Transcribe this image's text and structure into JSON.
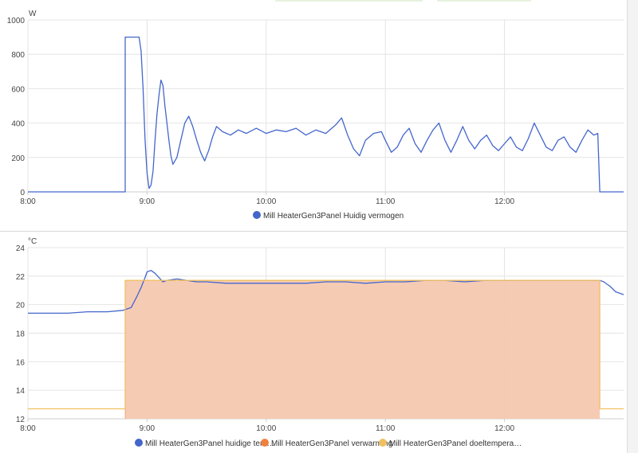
{
  "chart_data": [
    {
      "type": "line",
      "unit": "W",
      "ylim": [
        0,
        1000
      ],
      "y_ticks": [
        "0",
        "200",
        "400",
        "600",
        "800",
        "1000"
      ],
      "x_ticks": [
        "8:00",
        "9:00",
        "10:00",
        "11:00",
        "12:00"
      ],
      "grid": true,
      "legend_position": "bottom",
      "series": [
        {
          "name": "Mill HeaterGen3Panel Huidig vermogen",
          "color": "#4466cc",
          "points": [
            [
              "8:00",
              0
            ],
            [
              "8:49",
              0
            ],
            [
              "8:49",
              900
            ],
            [
              "8:56",
              900
            ],
            [
              "8:57",
              820
            ],
            [
              "8:58",
              600
            ],
            [
              "8:59",
              300
            ],
            [
              "9:00",
              110
            ],
            [
              "9:01",
              20
            ],
            [
              "9:02",
              40
            ],
            [
              "9:03",
              120
            ],
            [
              "9:04",
              300
            ],
            [
              "9:05",
              450
            ],
            [
              "9:06",
              560
            ],
            [
              "9:07",
              650
            ],
            [
              "9:08",
              620
            ],
            [
              "9:09",
              500
            ],
            [
              "9:10",
              400
            ],
            [
              "9:11",
              300
            ],
            [
              "9:12",
              210
            ],
            [
              "9:13",
              160
            ],
            [
              "9:15",
              200
            ],
            [
              "9:17",
              300
            ],
            [
              "9:19",
              400
            ],
            [
              "9:21",
              440
            ],
            [
              "9:23",
              380
            ],
            [
              "9:25",
              300
            ],
            [
              "9:27",
              230
            ],
            [
              "9:29",
              180
            ],
            [
              "9:31",
              240
            ],
            [
              "9:33",
              320
            ],
            [
              "9:35",
              380
            ],
            [
              "9:38",
              350
            ],
            [
              "9:42",
              330
            ],
            [
              "9:46",
              360
            ],
            [
              "9:50",
              340
            ],
            [
              "9:55",
              370
            ],
            [
              "10:00",
              340
            ],
            [
              "10:05",
              360
            ],
            [
              "10:10",
              350
            ],
            [
              "10:15",
              370
            ],
            [
              "10:20",
              330
            ],
            [
              "10:25",
              360
            ],
            [
              "10:30",
              340
            ],
            [
              "10:35",
              390
            ],
            [
              "10:38",
              430
            ],
            [
              "10:41",
              330
            ],
            [
              "10:44",
              250
            ],
            [
              "10:47",
              210
            ],
            [
              "10:50",
              300
            ],
            [
              "10:54",
              340
            ],
            [
              "10:58",
              350
            ],
            [
              "11:00",
              300
            ],
            [
              "11:03",
              230
            ],
            [
              "11:06",
              260
            ],
            [
              "11:09",
              330
            ],
            [
              "11:12",
              370
            ],
            [
              "11:15",
              280
            ],
            [
              "11:18",
              230
            ],
            [
              "11:21",
              300
            ],
            [
              "11:24",
              360
            ],
            [
              "11:27",
              400
            ],
            [
              "11:30",
              300
            ],
            [
              "11:33",
              230
            ],
            [
              "11:36",
              300
            ],
            [
              "11:39",
              380
            ],
            [
              "11:42",
              300
            ],
            [
              "11:45",
              250
            ],
            [
              "11:48",
              300
            ],
            [
              "11:51",
              330
            ],
            [
              "11:54",
              270
            ],
            [
              "11:57",
              240
            ],
            [
              "12:00",
              280
            ],
            [
              "12:03",
              320
            ],
            [
              "12:06",
              260
            ],
            [
              "12:09",
              240
            ],
            [
              "12:12",
              310
            ],
            [
              "12:15",
              400
            ],
            [
              "12:18",
              330
            ],
            [
              "12:21",
              260
            ],
            [
              "12:24",
              240
            ],
            [
              "12:27",
              300
            ],
            [
              "12:30",
              320
            ],
            [
              "12:33",
              260
            ],
            [
              "12:36",
              230
            ],
            [
              "12:39",
              300
            ],
            [
              "12:42",
              360
            ],
            [
              "12:45",
              330
            ],
            [
              "12:47",
              340
            ],
            [
              "12:48",
              0
            ],
            [
              "13:00",
              0
            ]
          ]
        }
      ]
    },
    {
      "type": "area",
      "unit": "°C",
      "ylim": [
        12,
        24
      ],
      "y_ticks": [
        "12",
        "14",
        "16",
        "18",
        "20",
        "22",
        "24"
      ],
      "x_ticks": [
        "8:00",
        "9:00",
        "10:00",
        "11:00",
        "12:00"
      ],
      "grid": true,
      "legend_position": "bottom",
      "series": [
        {
          "name": "Mill HeaterGen3Panel huidige tem…",
          "color": "#4466cc",
          "points": [
            [
              "8:00",
              19.4
            ],
            [
              "8:10",
              19.4
            ],
            [
              "8:20",
              19.4
            ],
            [
              "8:30",
              19.5
            ],
            [
              "8:40",
              19.5
            ],
            [
              "8:48",
              19.6
            ],
            [
              "8:52",
              19.8
            ],
            [
              "8:55",
              20.6
            ],
            [
              "8:57",
              21.2
            ],
            [
              "8:59",
              21.9
            ],
            [
              "9:00",
              22.3
            ],
            [
              "9:02",
              22.4
            ],
            [
              "9:04",
              22.2
            ],
            [
              "9:06",
              21.9
            ],
            [
              "9:08",
              21.6
            ],
            [
              "9:10",
              21.7
            ],
            [
              "9:15",
              21.8
            ],
            [
              "9:20",
              21.7
            ],
            [
              "9:25",
              21.6
            ],
            [
              "9:30",
              21.6
            ],
            [
              "9:40",
              21.5
            ],
            [
              "9:50",
              21.5
            ],
            [
              "10:00",
              21.5
            ],
            [
              "10:10",
              21.5
            ],
            [
              "10:20",
              21.5
            ],
            [
              "10:30",
              21.6
            ],
            [
              "10:40",
              21.6
            ],
            [
              "10:50",
              21.5
            ],
            [
              "11:00",
              21.6
            ],
            [
              "11:10",
              21.6
            ],
            [
              "11:20",
              21.7
            ],
            [
              "11:30",
              21.7
            ],
            [
              "11:40",
              21.6
            ],
            [
              "11:50",
              21.7
            ],
            [
              "12:00",
              21.7
            ],
            [
              "12:10",
              21.7
            ],
            [
              "12:20",
              21.7
            ],
            [
              "12:30",
              21.7
            ],
            [
              "12:40",
              21.7
            ],
            [
              "12:48",
              21.7
            ],
            [
              "12:50",
              21.6
            ],
            [
              "12:53",
              21.3
            ],
            [
              "12:56",
              20.9
            ],
            [
              "13:00",
              20.7
            ]
          ]
        },
        {
          "name": "Mill HeaterGen3Panel verwarming",
          "color": "#f08040",
          "fill": "#f5c8b0",
          "shaded_ranges": [
            [
              "8:49",
              "12:48"
            ]
          ]
        },
        {
          "name": "Mill HeaterGen3Panel doeltempera…",
          "color": "#f0c060",
          "points": [
            [
              "8:00",
              12.7
            ],
            [
              "8:49",
              12.7
            ],
            [
              "8:49",
              21.7
            ],
            [
              "12:48",
              21.7
            ],
            [
              "12:48",
              12.7
            ],
            [
              "13:00",
              12.7
            ]
          ]
        }
      ]
    }
  ]
}
